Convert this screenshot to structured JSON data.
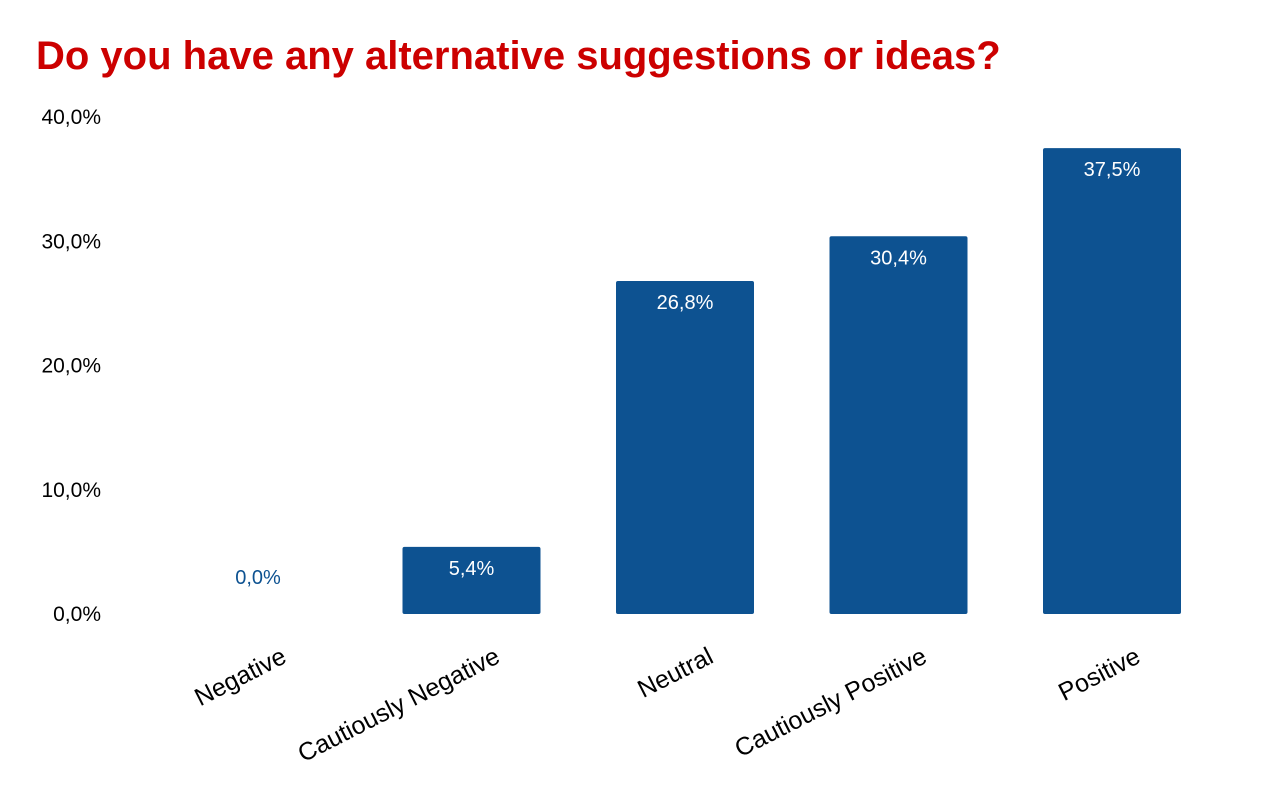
{
  "chart_data": {
    "type": "bar",
    "title": "Do you have any alternative suggestions or ideas?",
    "categories": [
      "Negative",
      "Cautiously Negative",
      "Neutral",
      "Cautiously Positive",
      "Positive"
    ],
    "values": [
      0.0,
      5.4,
      26.8,
      30.4,
      37.5
    ],
    "data_labels": [
      "0,0%",
      "5,4%",
      "26,8%",
      "30,4%",
      "37,5%"
    ],
    "y_ticks": [
      {
        "value": 0,
        "label": "0,0%"
      },
      {
        "value": 10,
        "label": "10,0%"
      },
      {
        "value": 20,
        "label": "20,0%"
      },
      {
        "value": 30,
        "label": "30,0%"
      },
      {
        "value": 40,
        "label": "40,0%"
      }
    ],
    "xlabel": "",
    "ylabel": "",
    "ylim": [
      0,
      40
    ],
    "grid": false,
    "legend": "none"
  },
  "colors": {
    "title": "#cc0000",
    "bar": "#0d5291",
    "label_inside": "#ffffff",
    "label_outside": "#0d5291"
  }
}
